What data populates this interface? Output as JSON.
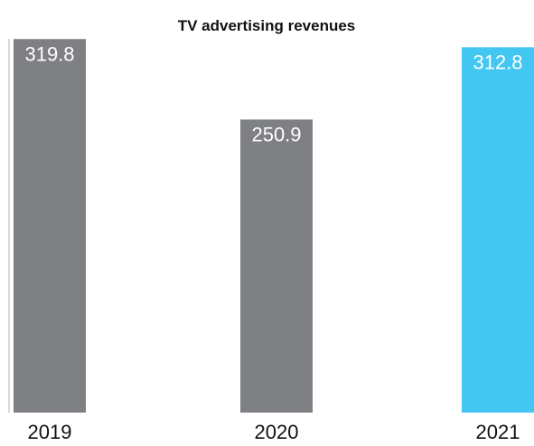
{
  "chart_data": {
    "type": "bar",
    "title": "TV advertising revenues",
    "xlabel": "",
    "ylabel": "",
    "categories": [
      "2019",
      "2020",
      "2021"
    ],
    "values": [
      319.8,
      250.9,
      312.8
    ],
    "value_labels": [
      "319.8",
      "250.9",
      "312.8"
    ],
    "ylim": [
      0,
      320
    ],
    "grid": false,
    "legend": "none",
    "colors": {
      "default_bar": "#7f8083",
      "highlight_bar": "#42c6f2",
      "axis_line": "#d9d9d9"
    },
    "highlight_index": 2
  }
}
